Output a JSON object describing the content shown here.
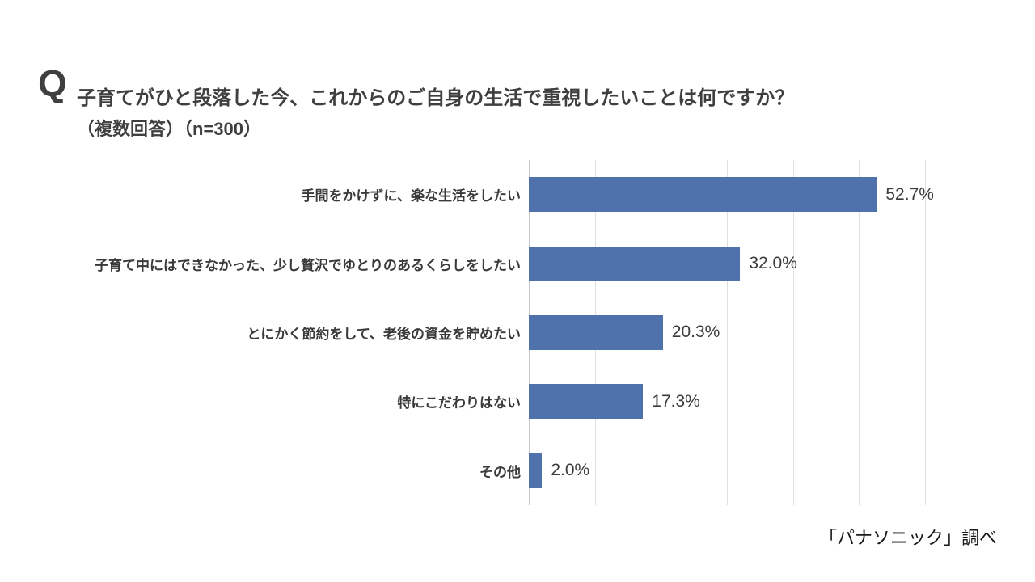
{
  "header": {
    "q_mark": "Q",
    "title_line1": "子育てがひと段落した今、これからのご自身の生活で重視したいことは何ですか？",
    "title_line2": "（複数回答）（n=300）"
  },
  "footer": {
    "source": "「パナソニック」調べ"
  },
  "chart_data": {
    "type": "bar",
    "orientation": "horizontal",
    "title": "子育てがひと段落した今、これからのご自身の生活で重視したいことは何ですか？（複数回答）（n=300）",
    "categories": [
      "手間をかけずに、楽な生活をしたい",
      "子育て中にはできなかった、少し贅沢でゆとりのあるくらしをしたい",
      "とにかく節約をして、老後の資金を貯めたい",
      "特にこだわりはない",
      "その他"
    ],
    "values": [
      52.7,
      32.0,
      20.3,
      17.3,
      2.0
    ],
    "value_labels": [
      "52.7%",
      "32.0%",
      "20.3%",
      "17.3%",
      "2.0%"
    ],
    "xlabel": "",
    "ylabel": "",
    "xlim": [
      0,
      60
    ],
    "gridline_interval": 10,
    "grid": true,
    "legend": "none",
    "bar_color": "#4f72ad",
    "gridline_color": "#e0e0e0"
  }
}
